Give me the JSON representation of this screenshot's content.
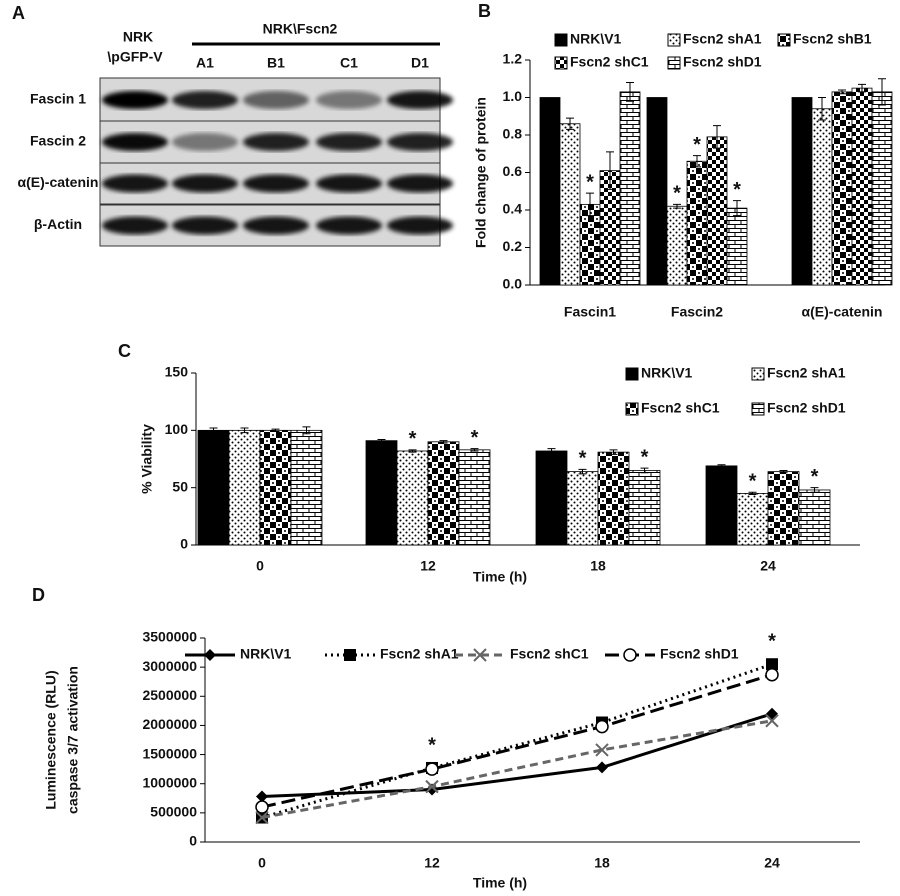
{
  "blot": {
    "label": "A",
    "group_label": "NRK\\Fscn2",
    "control_label": [
      "NRK",
      "\\pGFP-V"
    ],
    "lanes": [
      "A1",
      "B1",
      "C1",
      "D1"
    ],
    "rows": [
      "Fascin 1",
      "Fascin 2",
      "α(E)-catenin",
      "β-Actin"
    ]
  },
  "chart_data": [
    {
      "type": "bar",
      "label": "B",
      "ylabel": "Fold change of protein",
      "categories": [
        "Fascin1",
        "Fascin2",
        "α(E)-catenin"
      ],
      "ylim": [
        0,
        1.2
      ],
      "yticks": [
        {
          "value": 0,
          "label": "0.0"
        },
        {
          "value": 0.2,
          "label": "0.2"
        },
        {
          "value": 0.4,
          "label": "0.4"
        },
        {
          "value": 0.6,
          "label": "0.6"
        },
        {
          "value": 0.8,
          "label": "0.8"
        },
        {
          "value": 1,
          "label": "1.0"
        },
        {
          "value": 1.2,
          "label": "1.2"
        }
      ],
      "marker": "*",
      "series": [
        {
          "name": "NRK\\V1",
          "color": "#000000",
          "pattern": "solid",
          "values": [
            1,
            1,
            1
          ],
          "errors": [
            0,
            0,
            0
          ],
          "significant": [
            false,
            false,
            false
          ]
        },
        {
          "name": "Fscn2 shA1",
          "color": "#000000",
          "pattern": "dots",
          "values": [
            0.86,
            0.42,
            0.94
          ],
          "errors": [
            0.03,
            0.01,
            0.06
          ],
          "significant": [
            false,
            true,
            false
          ]
        },
        {
          "name": "Fscn2 shB1",
          "color": "#000000",
          "pattern": "checker",
          "values": [
            0.43,
            0.66,
            1.03
          ],
          "errors": [
            0.06,
            0.03,
            0.01
          ],
          "significant": [
            true,
            true,
            false
          ]
        },
        {
          "name": "Fscn2 shC1",
          "color": "#000000",
          "pattern": "check-small",
          "values": [
            0.61,
            0.79,
            1.05
          ],
          "errors": [
            0.1,
            0.06,
            0.02
          ],
          "significant": [
            false,
            false,
            false
          ]
        },
        {
          "name": "Fscn2 shD1",
          "color": "#000000",
          "pattern": "brick",
          "values": [
            1.03,
            0.41,
            1.03
          ],
          "errors": [
            0.05,
            0.04,
            0.07
          ],
          "significant": [
            false,
            true,
            false
          ]
        }
      ]
    },
    {
      "type": "bar",
      "label": "C",
      "ylabel": "% Viability",
      "xlabel": "Time (h)",
      "categories": [
        "0",
        "12",
        "18",
        "24"
      ],
      "ylim": [
        0,
        150
      ],
      "yticks": [
        0,
        50,
        100,
        150
      ],
      "marker": "*",
      "series": [
        {
          "name": "NRK\\V1",
          "color": "#000000",
          "pattern": "solid",
          "values": [
            100,
            91,
            82,
            69
          ],
          "errors": [
            2,
            1,
            2,
            1
          ],
          "significant": [
            false,
            false,
            false,
            false
          ]
        },
        {
          "name": "Fscn2 shA1",
          "color": "#000000",
          "pattern": "dots",
          "values": [
            100,
            82,
            64,
            45
          ],
          "errors": [
            2,
            1,
            2,
            1
          ],
          "significant": [
            false,
            true,
            true,
            true
          ]
        },
        {
          "name": "Fscn2 shC1",
          "color": "#000000",
          "pattern": "checker",
          "values": [
            100,
            90,
            81,
            64
          ],
          "errors": [
            1,
            1,
            2,
            1
          ],
          "significant": [
            false,
            false,
            false,
            false
          ]
        },
        {
          "name": "Fscn2 shD1",
          "color": "#000000",
          "pattern": "brick",
          "values": [
            100,
            83,
            65,
            48
          ],
          "errors": [
            3,
            1,
            2,
            2
          ],
          "significant": [
            false,
            true,
            true,
            true
          ]
        }
      ]
    },
    {
      "type": "line",
      "label": "D",
      "ylabel": [
        "Luminescence (RLU)",
        "caspase 3/7 activation"
      ],
      "xlabel": "Time (h)",
      "categories": [
        "0",
        "12",
        "18",
        "24"
      ],
      "ylim": [
        0,
        3500000
      ],
      "yticks": [
        0,
        500000,
        1000000,
        1500000,
        2000000,
        2500000,
        3000000,
        3500000
      ],
      "marker": "*",
      "significant": [
        false,
        true,
        false,
        true
      ],
      "series": [
        {
          "name": "NRK\\V1",
          "color": "#000000",
          "dash": "solid",
          "symbol": "diamond",
          "values": [
            780000,
            900000,
            1280000,
            2200000
          ]
        },
        {
          "name": "Fscn2 shA1",
          "color": "#000000",
          "dash": "dotted",
          "symbol": "square",
          "values": [
            420000,
            1270000,
            2050000,
            3050000
          ]
        },
        {
          "name": "Fscn2 shC1",
          "color": "#666666",
          "dash": "dashed",
          "symbol": "x",
          "values": [
            420000,
            950000,
            1580000,
            2080000
          ]
        },
        {
          "name": "Fscn2  shD1",
          "color": "#000000",
          "dash": "longdash",
          "symbol": "circle",
          "values": [
            600000,
            1250000,
            1980000,
            2870000
          ]
        }
      ]
    }
  ]
}
